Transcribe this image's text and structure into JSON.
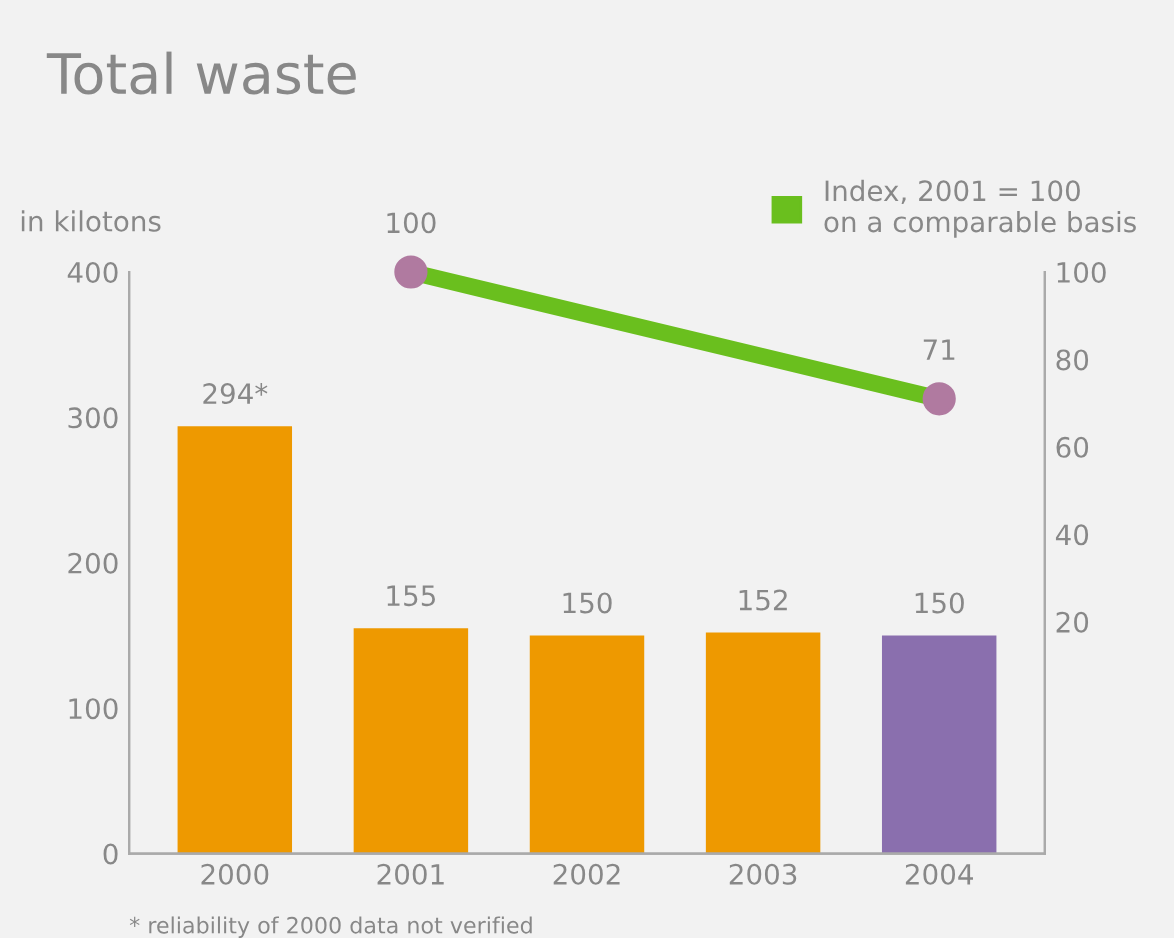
{
  "chart_data": {
    "type": "bar",
    "title": "Total waste",
    "ylabel": "in kilotons",
    "categories": [
      "2000",
      "2001",
      "2002",
      "2003",
      "2004"
    ],
    "series": [
      {
        "colors": [
          "#ee9900",
          "#ee9900",
          "#ee9900",
          "#ee9900",
          "#8a6fae"
        ],
        "values": [
          294,
          155,
          150,
          152,
          150
        ],
        "value_labels": [
          "294*",
          "155",
          "150",
          "152",
          "150"
        ]
      },
      {
        "type": "line",
        "name": "Index, 2001 = 100\non a comparable basis",
        "axis": "y2",
        "color": "#6abf1e",
        "colors": [
          "#b07aa0",
          "#b07aa0",
          "#b07aa0",
          "#b07aa0",
          "#b07aa0"
        ],
        "marker": "circle",
        "values": [
          null,
          100,
          null,
          null,
          71
        ],
        "value_labels": [
          null,
          "100",
          null,
          null,
          "71"
        ]
      }
    ],
    "ylim": [
      0,
      400
    ],
    "yticks": [
      0,
      100,
      200,
      300,
      400
    ],
    "y2lim": [
      -33,
      100
    ],
    "y2ticks": [
      20,
      40,
      60,
      80,
      100
    ],
    "grid": false,
    "legend": "top right",
    "annotations": [
      "* reliability of 2000 data not verified"
    ]
  }
}
